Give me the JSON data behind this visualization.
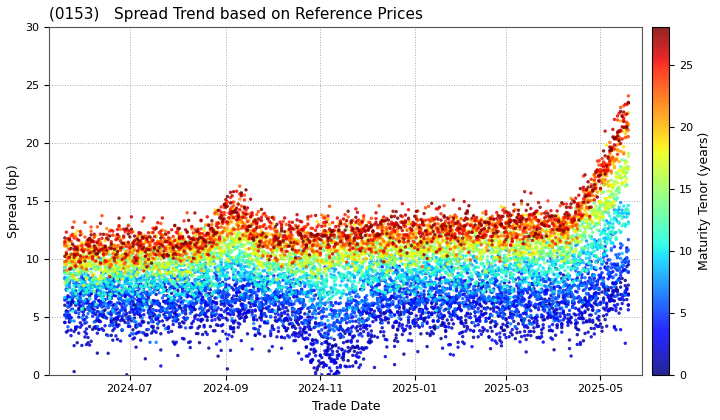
{
  "title": "(0153)   Spread Trend based on Reference Prices",
  "xlabel": "Trade Date",
  "ylabel": "Spread (bp)",
  "colorbar_label": "Maturity Tenor (years)",
  "ylim": [
    0,
    30
  ],
  "colormap": "jet",
  "vmin": 0,
  "vmax": 28,
  "xtick_labels": [
    "2024-07",
    "2024-09",
    "2024-11",
    "2025-01",
    "2025-03",
    "2025-05"
  ],
  "ytick_values": [
    0,
    5,
    10,
    15,
    20,
    25,
    30
  ],
  "colorbar_ticks": [
    0,
    5,
    10,
    15,
    20,
    25
  ],
  "background_color": "#ffffff",
  "grid_color": "#aaaaaa",
  "marker_size": 6
}
